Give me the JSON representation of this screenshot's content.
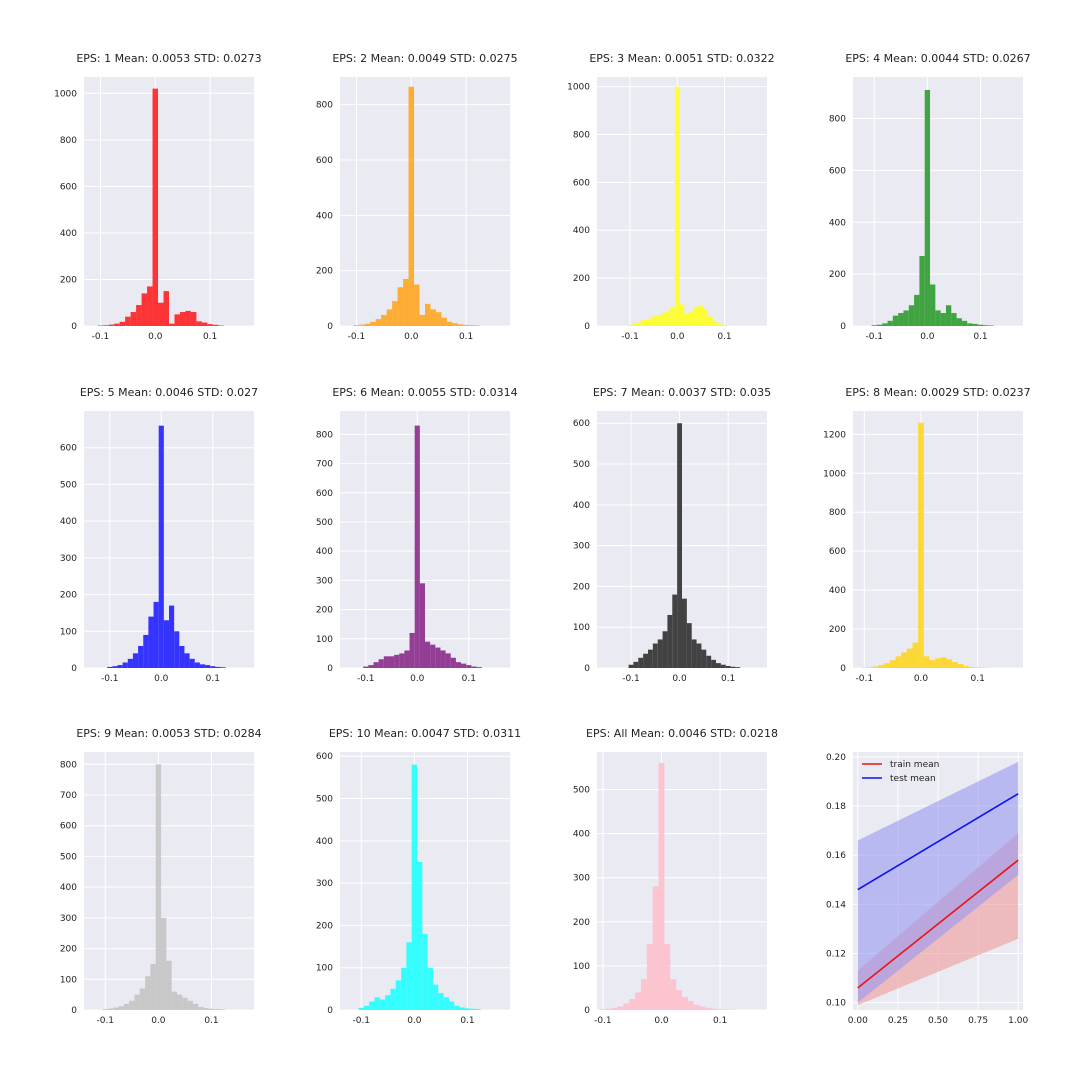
{
  "chart_data": [
    {
      "type": "bar",
      "title": "EPS: 1 Mean: 0.0053 STD: 0.0273",
      "color": "#ff2020",
      "xlim": [
        -0.13,
        0.18
      ],
      "ylim": [
        0,
        1070
      ],
      "xticks": [
        -0.1,
        0.0,
        0.1
      ],
      "xtick_labels": [
        "-0.1",
        "0.0",
        "0.1"
      ],
      "yticks": [
        0,
        200,
        400,
        600,
        800,
        1000
      ],
      "ytick_labels": [
        "0",
        "200",
        "400",
        "600",
        "800",
        "1000"
      ],
      "bins": [
        -0.1,
        -0.09,
        -0.08,
        -0.07,
        -0.06,
        -0.05,
        -0.04,
        -0.03,
        -0.02,
        -0.01,
        0.0,
        0.01,
        0.02,
        0.03,
        0.04,
        0.05,
        0.06,
        0.07,
        0.08,
        0.09,
        0.1,
        0.11,
        0.12
      ],
      "values": [
        2,
        3,
        6,
        10,
        18,
        40,
        60,
        90,
        140,
        170,
        1020,
        100,
        150,
        10,
        50,
        60,
        65,
        60,
        20,
        15,
        8,
        5,
        2
      ]
    },
    {
      "type": "bar",
      "title": "EPS: 2 Mean: 0.0049 STD: 0.0275",
      "color": "#ffa620",
      "xlim": [
        -0.13,
        0.18
      ],
      "ylim": [
        0,
        900
      ],
      "xticks": [
        -0.1,
        0.0,
        0.1
      ],
      "xtick_labels": [
        "-0.1",
        "0.0",
        "0.1"
      ],
      "yticks": [
        0,
        200,
        400,
        600,
        800
      ],
      "ytick_labels": [
        "0",
        "200",
        "400",
        "600",
        "800"
      ],
      "bins": [
        -0.1,
        -0.09,
        -0.08,
        -0.07,
        -0.06,
        -0.05,
        -0.04,
        -0.03,
        -0.02,
        -0.01,
        0.0,
        0.01,
        0.02,
        0.03,
        0.04,
        0.05,
        0.06,
        0.07,
        0.08,
        0.09,
        0.1,
        0.11,
        0.12
      ],
      "values": [
        3,
        5,
        8,
        15,
        25,
        40,
        60,
        90,
        140,
        170,
        865,
        150,
        40,
        80,
        60,
        50,
        30,
        15,
        10,
        6,
        4,
        3,
        2
      ]
    },
    {
      "type": "bar",
      "title": "EPS: 3 Mean: 0.0051 STD: 0.0322",
      "color": "#ffff20",
      "xlim": [
        -0.17,
        0.19
      ],
      "ylim": [
        0,
        1040
      ],
      "xticks": [
        -0.1,
        0.0,
        0.1
      ],
      "xtick_labels": [
        "-0.1",
        "0.0",
        "0.1"
      ],
      "yticks": [
        0,
        200,
        400,
        600,
        800,
        1000
      ],
      "ytick_labels": [
        "0",
        "200",
        "400",
        "600",
        "800",
        "1000"
      ],
      "bins": [
        -0.1,
        -0.09,
        -0.08,
        -0.07,
        -0.06,
        -0.05,
        -0.04,
        -0.03,
        -0.02,
        -0.01,
        0.0,
        0.01,
        0.02,
        0.03,
        0.04,
        0.05,
        0.06,
        0.07,
        0.08,
        0.09,
        0.1
      ],
      "values": [
        5,
        10,
        15,
        25,
        30,
        40,
        45,
        55,
        60,
        80,
        1000,
        90,
        50,
        60,
        80,
        85,
        70,
        40,
        20,
        10,
        5
      ]
    },
    {
      "type": "bar",
      "title": "EPS: 4 Mean: 0.0044 STD: 0.0267",
      "color": "#2e9c2e",
      "xlim": [
        -0.14,
        0.18
      ],
      "ylim": [
        0,
        960
      ],
      "xticks": [
        -0.1,
        0.0,
        0.1
      ],
      "xtick_labels": [
        "-0.1",
        "0.0",
        "0.1"
      ],
      "yticks": [
        0,
        200,
        400,
        600,
        800
      ],
      "ytick_labels": [
        "0",
        "200",
        "400",
        "600",
        "800"
      ],
      "bins": [
        -0.1,
        -0.09,
        -0.08,
        -0.07,
        -0.06,
        -0.05,
        -0.04,
        -0.03,
        -0.02,
        -0.01,
        0.0,
        0.01,
        0.02,
        0.03,
        0.04,
        0.05,
        0.06,
        0.07,
        0.08,
        0.09,
        0.1,
        0.11,
        0.12
      ],
      "values": [
        3,
        5,
        10,
        20,
        40,
        50,
        60,
        80,
        120,
        270,
        910,
        160,
        60,
        50,
        80,
        50,
        30,
        20,
        10,
        8,
        5,
        3,
        2
      ]
    },
    {
      "type": "bar",
      "title": "EPS: 5 Mean: 0.0046 STD: 0.027",
      "color": "#2020ff",
      "xlim": [
        -0.15,
        0.18
      ],
      "ylim": [
        0,
        700
      ],
      "xticks": [
        -0.1,
        0.0,
        0.1
      ],
      "xtick_labels": [
        "-0.1",
        "0.0",
        "0.1"
      ],
      "yticks": [
        0,
        100,
        200,
        300,
        400,
        500,
        600
      ],
      "ytick_labels": [
        "0",
        "100",
        "200",
        "300",
        "400",
        "500",
        "600"
      ],
      "bins": [
        -0.1,
        -0.09,
        -0.08,
        -0.07,
        -0.06,
        -0.05,
        -0.04,
        -0.03,
        -0.02,
        -0.01,
        0.0,
        0.01,
        0.02,
        0.03,
        0.04,
        0.05,
        0.06,
        0.07,
        0.08,
        0.09,
        0.1,
        0.11,
        0.12
      ],
      "values": [
        3,
        5,
        8,
        15,
        25,
        40,
        60,
        90,
        140,
        180,
        660,
        130,
        170,
        100,
        60,
        40,
        25,
        15,
        10,
        8,
        5,
        3,
        2
      ]
    },
    {
      "type": "bar",
      "title": "EPS: 6 Mean: 0.0055 STD: 0.0314",
      "color": "#8a2b8a",
      "xlim": [
        -0.15,
        0.18
      ],
      "ylim": [
        0,
        880
      ],
      "xticks": [
        -0.1,
        0.0,
        0.1
      ],
      "xtick_labels": [
        "-0.1",
        "0.0",
        "0.1"
      ],
      "yticks": [
        0,
        100,
        200,
        300,
        400,
        500,
        600,
        700,
        800
      ],
      "ytick_labels": [
        "0",
        "100",
        "200",
        "300",
        "400",
        "500",
        "600",
        "700",
        "800"
      ],
      "bins": [
        -0.1,
        -0.09,
        -0.08,
        -0.07,
        -0.06,
        -0.05,
        -0.04,
        -0.03,
        -0.02,
        -0.01,
        0.0,
        0.01,
        0.02,
        0.03,
        0.04,
        0.05,
        0.06,
        0.07,
        0.08,
        0.09,
        0.1,
        0.11,
        0.12
      ],
      "values": [
        5,
        10,
        20,
        30,
        40,
        40,
        45,
        50,
        60,
        120,
        830,
        290,
        90,
        80,
        70,
        60,
        50,
        35,
        20,
        15,
        10,
        5,
        3
      ]
    },
    {
      "type": "bar",
      "title": "EPS: 7 Mean: 0.0037 STD: 0.035",
      "color": "#303030",
      "xlim": [
        -0.17,
        0.18
      ],
      "ylim": [
        0,
        630
      ],
      "xticks": [
        -0.1,
        0.0,
        0.1
      ],
      "xtick_labels": [
        "-0.1",
        "0.0",
        "0.1"
      ],
      "yticks": [
        0,
        100,
        200,
        300,
        400,
        500,
        600
      ],
      "ytick_labels": [
        "0",
        "100",
        "200",
        "300",
        "400",
        "500",
        "600"
      ],
      "bins": [
        -0.1,
        -0.09,
        -0.08,
        -0.07,
        -0.06,
        -0.05,
        -0.04,
        -0.03,
        -0.02,
        -0.01,
        0.0,
        0.01,
        0.02,
        0.03,
        0.04,
        0.05,
        0.06,
        0.07,
        0.08,
        0.09,
        0.1,
        0.11,
        0.12
      ],
      "values": [
        8,
        15,
        25,
        35,
        45,
        60,
        70,
        90,
        130,
        180,
        600,
        170,
        110,
        70,
        60,
        45,
        30,
        20,
        12,
        8,
        5,
        3,
        2
      ]
    },
    {
      "type": "bar",
      "title": "EPS: 8 Mean: 0.0029 STD: 0.0237",
      "color": "#ffd620",
      "xlim": [
        -0.12,
        0.18
      ],
      "ylim": [
        0,
        1320
      ],
      "xticks": [
        -0.1,
        0.0,
        0.1
      ],
      "xtick_labels": [
        "-0.1",
        "0.0",
        "0.1"
      ],
      "yticks": [
        0,
        200,
        400,
        600,
        800,
        1000,
        1200
      ],
      "ytick_labels": [
        "0",
        "200",
        "400",
        "600",
        "800",
        "1000",
        "1200"
      ],
      "bins": [
        -0.1,
        -0.09,
        -0.08,
        -0.07,
        -0.06,
        -0.05,
        -0.04,
        -0.03,
        -0.02,
        -0.01,
        0.0,
        0.01,
        0.02,
        0.03,
        0.04,
        0.05,
        0.06,
        0.07,
        0.08,
        0.09,
        0.1,
        0.11,
        0.12
      ],
      "values": [
        2,
        4,
        8,
        15,
        25,
        40,
        60,
        80,
        100,
        130,
        1260,
        60,
        40,
        50,
        55,
        45,
        30,
        20,
        10,
        5,
        3,
        2,
        1
      ]
    },
    {
      "type": "bar",
      "title": "EPS: 9 Mean: 0.0053 STD: 0.0284",
      "color": "#c4c4c4",
      "xlim": [
        -0.14,
        0.18
      ],
      "ylim": [
        0,
        840
      ],
      "xticks": [
        -0.1,
        0.0,
        0.1
      ],
      "xtick_labels": [
        "-0.1",
        "0.0",
        "0.1"
      ],
      "yticks": [
        0,
        100,
        200,
        300,
        400,
        500,
        600,
        700,
        800
      ],
      "ytick_labels": [
        "0",
        "100",
        "200",
        "300",
        "400",
        "500",
        "600",
        "700",
        "800"
      ],
      "bins": [
        -0.1,
        -0.09,
        -0.08,
        -0.07,
        -0.06,
        -0.05,
        -0.04,
        -0.03,
        -0.02,
        -0.01,
        0.0,
        0.01,
        0.02,
        0.03,
        0.04,
        0.05,
        0.06,
        0.07,
        0.08,
        0.09,
        0.1,
        0.11,
        0.12
      ],
      "values": [
        3,
        5,
        8,
        12,
        20,
        30,
        50,
        70,
        110,
        150,
        800,
        300,
        160,
        60,
        50,
        40,
        30,
        20,
        10,
        6,
        4,
        3,
        2
      ]
    },
    {
      "type": "bar",
      "title": "EPS: 10 Mean: 0.0047 STD: 0.0311",
      "color": "#20ffff",
      "xlim": [
        -0.14,
        0.18
      ],
      "ylim": [
        0,
        610
      ],
      "xticks": [
        -0.1,
        0.0,
        0.1
      ],
      "xtick_labels": [
        "-0.1",
        "0.0",
        "0.1"
      ],
      "yticks": [
        0,
        100,
        200,
        300,
        400,
        500,
        600
      ],
      "ytick_labels": [
        "0",
        "100",
        "200",
        "300",
        "400",
        "500",
        "600"
      ],
      "bins": [
        -0.1,
        -0.09,
        -0.08,
        -0.07,
        -0.06,
        -0.05,
        -0.04,
        -0.03,
        -0.02,
        -0.01,
        0.0,
        0.01,
        0.02,
        0.03,
        0.04,
        0.05,
        0.06,
        0.07,
        0.08,
        0.09,
        0.1,
        0.11,
        0.12
      ],
      "values": [
        5,
        10,
        20,
        30,
        25,
        35,
        50,
        70,
        100,
        160,
        580,
        350,
        180,
        100,
        60,
        40,
        30,
        20,
        10,
        6,
        4,
        3,
        2
      ]
    },
    {
      "type": "bar",
      "title": "EPS: All Mean: 0.0046 STD: 0.0218",
      "color": "#ffc0cb",
      "xlim": [
        -0.11,
        0.18
      ],
      "ylim": [
        0,
        585
      ],
      "xticks": [
        -0.1,
        0.0,
        0.1
      ],
      "xtick_labels": [
        "-0.1",
        "0.0",
        "0.1"
      ],
      "yticks": [
        0,
        100,
        200,
        300,
        400,
        500
      ],
      "ytick_labels": [
        "0",
        "100",
        "200",
        "300",
        "400",
        "500"
      ],
      "bins": [
        -0.1,
        -0.09,
        -0.08,
        -0.07,
        -0.06,
        -0.05,
        -0.04,
        -0.03,
        -0.02,
        -0.01,
        0.0,
        0.01,
        0.02,
        0.03,
        0.04,
        0.05,
        0.06,
        0.07,
        0.08,
        0.09,
        0.1,
        0.11,
        0.12
      ],
      "values": [
        2,
        3,
        5,
        8,
        15,
        25,
        40,
        70,
        150,
        280,
        560,
        150,
        70,
        45,
        30,
        20,
        12,
        8,
        5,
        3,
        2,
        1,
        1
      ]
    },
    {
      "type": "line",
      "title": "",
      "xlim": [
        -0.03,
        1.03
      ],
      "ylim": [
        0.097,
        0.202
      ],
      "xticks": [
        0.0,
        0.25,
        0.5,
        0.75,
        1.0
      ],
      "xtick_labels": [
        "0.00",
        "0.25",
        "0.50",
        "0.75",
        "1.00"
      ],
      "yticks": [
        0.1,
        0.12,
        0.14,
        0.16,
        0.18,
        0.2
      ],
      "ytick_labels": [
        "0.10",
        "0.12",
        "0.14",
        "0.16",
        "0.18",
        "0.20"
      ],
      "legend": "top-left",
      "x": [
        0.0,
        1.0
      ],
      "series": [
        {
          "name": "train mean",
          "color": "#ee1111",
          "band_color": "#ef9a9a",
          "values": [
            0.106,
            0.158
          ],
          "lower": [
            0.099,
            0.126
          ],
          "upper": [
            0.113,
            0.169
          ]
        },
        {
          "name": "test mean",
          "color": "#1111ee",
          "band_color": "#9898f0",
          "values": [
            0.146,
            0.185
          ],
          "lower": [
            0.1,
            0.152
          ],
          "upper": [
            0.166,
            0.198
          ]
        }
      ]
    }
  ]
}
